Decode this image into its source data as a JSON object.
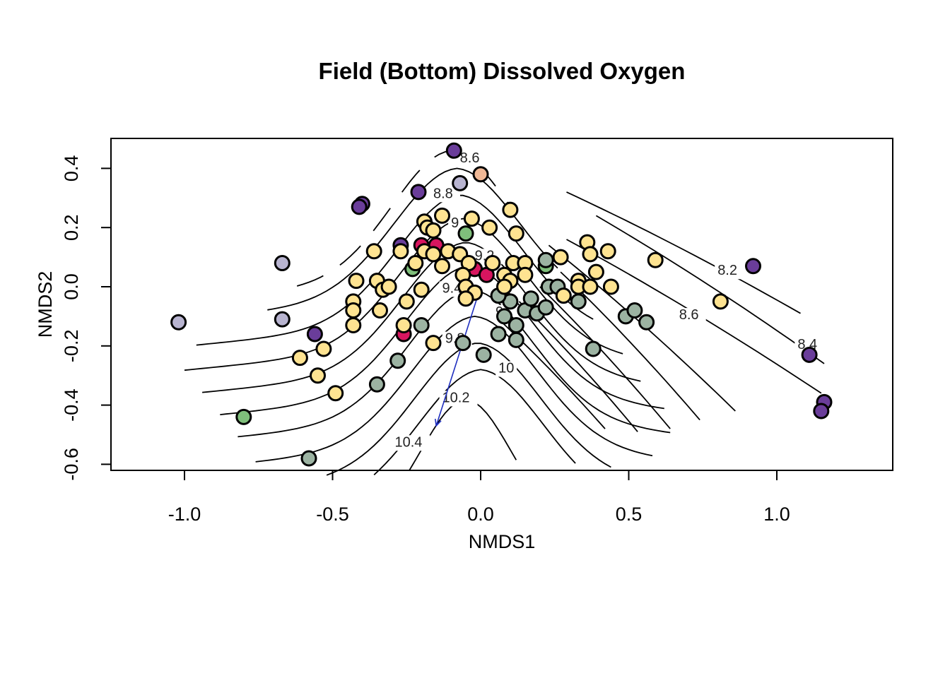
{
  "chart_data": {
    "type": "scatter",
    "title": "Field (Bottom) Dissolved Oxygen",
    "xlabel": "NMDS1",
    "ylabel": "NMDS2",
    "xlim": [
      -1.25,
      1.4
    ],
    "ylim": [
      -0.62,
      0.5
    ],
    "xticks": [
      -1.0,
      -0.5,
      0.0,
      0.5,
      1.0
    ],
    "xtick_labels": [
      "-1.0",
      "-0.5",
      "0.0",
      "0.5",
      "1.0"
    ],
    "yticks": [
      -0.6,
      -0.4,
      -0.2,
      0.0,
      0.2,
      0.4
    ],
    "ytick_labels": [
      "-0.6",
      "-0.4",
      "-0.2",
      "0.0",
      "0.2",
      "0.4"
    ],
    "grid": false,
    "colors": {
      "purple": "#6a3d9a",
      "lavender": "#b8b4d0",
      "peach": "#f0b896",
      "green": "#7fbf7b",
      "red": "#d7155f",
      "yellow": "#fee391",
      "gray": "#9cb3a2"
    },
    "points": [
      {
        "x": -0.09,
        "y": 0.46,
        "color": "purple"
      },
      {
        "x": 0.0,
        "y": 0.38,
        "color": "peach"
      },
      {
        "x": -0.07,
        "y": 0.35,
        "color": "lavender"
      },
      {
        "x": -0.4,
        "y": 0.28,
        "color": "purple"
      },
      {
        "x": -0.41,
        "y": 0.27,
        "color": "purple"
      },
      {
        "x": -0.21,
        "y": 0.32,
        "color": "purple"
      },
      {
        "x": -0.67,
        "y": 0.08,
        "color": "lavender"
      },
      {
        "x": -1.02,
        "y": -0.12,
        "color": "lavender"
      },
      {
        "x": -0.67,
        "y": -0.11,
        "color": "lavender"
      },
      {
        "x": -0.56,
        "y": -0.16,
        "color": "purple"
      },
      {
        "x": 0.92,
        "y": 0.07,
        "color": "purple"
      },
      {
        "x": 1.11,
        "y": -0.23,
        "color": "purple"
      },
      {
        "x": 1.16,
        "y": -0.39,
        "color": "purple"
      },
      {
        "x": 1.15,
        "y": -0.42,
        "color": "purple"
      },
      {
        "x": -0.27,
        "y": 0.14,
        "color": "purple"
      },
      {
        "x": -0.8,
        "y": -0.44,
        "color": "green"
      },
      {
        "x": -0.05,
        "y": 0.18,
        "color": "green"
      },
      {
        "x": -0.23,
        "y": 0.06,
        "color": "green"
      },
      {
        "x": 0.22,
        "y": 0.07,
        "color": "green"
      },
      {
        "x": -0.15,
        "y": 0.14,
        "color": "red"
      },
      {
        "x": -0.2,
        "y": 0.14,
        "color": "red"
      },
      {
        "x": -0.02,
        "y": 0.06,
        "color": "red"
      },
      {
        "x": 0.02,
        "y": 0.04,
        "color": "red"
      },
      {
        "x": -0.26,
        "y": -0.16,
        "color": "red"
      },
      {
        "x": -0.58,
        "y": -0.58,
        "color": "gray"
      },
      {
        "x": -0.35,
        "y": -0.33,
        "color": "gray"
      },
      {
        "x": -0.28,
        "y": -0.25,
        "color": "gray"
      },
      {
        "x": -0.2,
        "y": -0.13,
        "color": "gray"
      },
      {
        "x": -0.06,
        "y": -0.19,
        "color": "gray"
      },
      {
        "x": 0.01,
        "y": -0.23,
        "color": "gray"
      },
      {
        "x": 0.06,
        "y": -0.16,
        "color": "gray"
      },
      {
        "x": 0.08,
        "y": -0.1,
        "color": "gray"
      },
      {
        "x": 0.12,
        "y": -0.13,
        "color": "gray"
      },
      {
        "x": 0.12,
        "y": -0.18,
        "color": "gray"
      },
      {
        "x": 0.1,
        "y": -0.05,
        "color": "gray"
      },
      {
        "x": 0.15,
        "y": -0.08,
        "color": "gray"
      },
      {
        "x": 0.17,
        "y": -0.04,
        "color": "gray"
      },
      {
        "x": 0.19,
        "y": -0.09,
        "color": "gray"
      },
      {
        "x": 0.22,
        "y": -0.07,
        "color": "gray"
      },
      {
        "x": 0.06,
        "y": -0.03,
        "color": "gray"
      },
      {
        "x": 0.23,
        "y": 0.0,
        "color": "gray"
      },
      {
        "x": 0.26,
        "y": 0.0,
        "color": "gray"
      },
      {
        "x": 0.22,
        "y": 0.09,
        "color": "gray"
      },
      {
        "x": 0.33,
        "y": -0.05,
        "color": "gray"
      },
      {
        "x": 0.38,
        "y": -0.21,
        "color": "gray"
      },
      {
        "x": 0.49,
        "y": -0.1,
        "color": "gray"
      },
      {
        "x": 0.52,
        "y": -0.08,
        "color": "gray"
      },
      {
        "x": 0.56,
        "y": -0.12,
        "color": "gray"
      },
      {
        "x": -0.19,
        "y": 0.22,
        "color": "yellow"
      },
      {
        "x": -0.18,
        "y": 0.2,
        "color": "yellow"
      },
      {
        "x": -0.16,
        "y": 0.19,
        "color": "yellow"
      },
      {
        "x": -0.13,
        "y": 0.24,
        "color": "yellow"
      },
      {
        "x": -0.03,
        "y": 0.23,
        "color": "yellow"
      },
      {
        "x": 0.03,
        "y": 0.2,
        "color": "yellow"
      },
      {
        "x": 0.1,
        "y": 0.26,
        "color": "yellow"
      },
      {
        "x": 0.12,
        "y": 0.18,
        "color": "yellow"
      },
      {
        "x": -0.36,
        "y": 0.12,
        "color": "yellow"
      },
      {
        "x": -0.27,
        "y": 0.12,
        "color": "yellow"
      },
      {
        "x": -0.19,
        "y": 0.12,
        "color": "yellow"
      },
      {
        "x": -0.16,
        "y": 0.11,
        "color": "yellow"
      },
      {
        "x": -0.11,
        "y": 0.12,
        "color": "yellow"
      },
      {
        "x": -0.07,
        "y": 0.11,
        "color": "yellow"
      },
      {
        "x": -0.04,
        "y": 0.08,
        "color": "yellow"
      },
      {
        "x": -0.13,
        "y": 0.07,
        "color": "yellow"
      },
      {
        "x": -0.22,
        "y": 0.08,
        "color": "yellow"
      },
      {
        "x": -0.06,
        "y": 0.04,
        "color": "yellow"
      },
      {
        "x": 0.04,
        "y": 0.08,
        "color": "yellow"
      },
      {
        "x": 0.08,
        "y": 0.04,
        "color": "yellow"
      },
      {
        "x": 0.11,
        "y": 0.08,
        "color": "yellow"
      },
      {
        "x": 0.15,
        "y": 0.08,
        "color": "yellow"
      },
      {
        "x": 0.15,
        "y": 0.04,
        "color": "yellow"
      },
      {
        "x": 0.1,
        "y": 0.02,
        "color": "yellow"
      },
      {
        "x": 0.08,
        "y": 0.0,
        "color": "yellow"
      },
      {
        "x": -0.05,
        "y": 0.0,
        "color": "yellow"
      },
      {
        "x": -0.02,
        "y": -0.02,
        "color": "yellow"
      },
      {
        "x": -0.05,
        "y": -0.04,
        "color": "yellow"
      },
      {
        "x": 0.27,
        "y": 0.1,
        "color": "yellow"
      },
      {
        "x": 0.36,
        "y": 0.15,
        "color": "yellow"
      },
      {
        "x": 0.37,
        "y": 0.11,
        "color": "yellow"
      },
      {
        "x": 0.43,
        "y": 0.12,
        "color": "yellow"
      },
      {
        "x": 0.39,
        "y": 0.05,
        "color": "yellow"
      },
      {
        "x": 0.33,
        "y": 0.02,
        "color": "yellow"
      },
      {
        "x": 0.33,
        "y": 0.0,
        "color": "yellow"
      },
      {
        "x": 0.37,
        "y": 0.0,
        "color": "yellow"
      },
      {
        "x": 0.44,
        "y": 0.0,
        "color": "yellow"
      },
      {
        "x": 0.28,
        "y": -0.03,
        "color": "yellow"
      },
      {
        "x": 0.59,
        "y": 0.09,
        "color": "yellow"
      },
      {
        "x": 0.81,
        "y": -0.05,
        "color": "yellow"
      },
      {
        "x": -0.42,
        "y": 0.02,
        "color": "yellow"
      },
      {
        "x": -0.35,
        "y": 0.02,
        "color": "yellow"
      },
      {
        "x": -0.33,
        "y": -0.01,
        "color": "yellow"
      },
      {
        "x": -0.31,
        "y": 0.0,
        "color": "yellow"
      },
      {
        "x": -0.2,
        "y": -0.01,
        "color": "yellow"
      },
      {
        "x": -0.25,
        "y": -0.05,
        "color": "yellow"
      },
      {
        "x": -0.43,
        "y": -0.05,
        "color": "yellow"
      },
      {
        "x": -0.43,
        "y": -0.08,
        "color": "yellow"
      },
      {
        "x": -0.34,
        "y": -0.08,
        "color": "yellow"
      },
      {
        "x": -0.43,
        "y": -0.13,
        "color": "yellow"
      },
      {
        "x": -0.26,
        "y": -0.13,
        "color": "yellow"
      },
      {
        "x": -0.16,
        "y": -0.19,
        "color": "yellow"
      },
      {
        "x": -0.53,
        "y": -0.21,
        "color": "yellow"
      },
      {
        "x": -0.61,
        "y": -0.24,
        "color": "yellow"
      },
      {
        "x": -0.55,
        "y": -0.3,
        "color": "yellow"
      },
      {
        "x": -0.49,
        "y": -0.36,
        "color": "yellow"
      }
    ],
    "contour_labels": [
      {
        "text": "8.6",
        "x": -0.07,
        "y": 0.42
      },
      {
        "text": "8.8",
        "x": -0.16,
        "y": 0.3
      },
      {
        "text": "9",
        "x": -0.1,
        "y": 0.2
      },
      {
        "text": "9.2",
        "x": -0.02,
        "y": 0.09
      },
      {
        "text": "9.4",
        "x": -0.13,
        "y": -0.02
      },
      {
        "text": "9",
        "x": 0.05,
        "y": -0.1
      },
      {
        "text": "9.8",
        "x": -0.12,
        "y": -0.19
      },
      {
        "text": "10",
        "x": 0.06,
        "y": -0.29
      },
      {
        "text": "10.2",
        "x": -0.13,
        "y": -0.39
      },
      {
        "text": "10.4",
        "x": -0.29,
        "y": -0.54
      },
      {
        "text": "8.2",
        "x": 0.8,
        "y": 0.04
      },
      {
        "text": "8.6",
        "x": 0.67,
        "y": -0.11
      },
      {
        "text": "8.4",
        "x": 1.07,
        "y": -0.21
      }
    ],
    "vector": {
      "x0": 0.0,
      "y0": 0.0,
      "x1": -0.15,
      "y1": -0.47,
      "color": "#1f2fbf"
    }
  }
}
